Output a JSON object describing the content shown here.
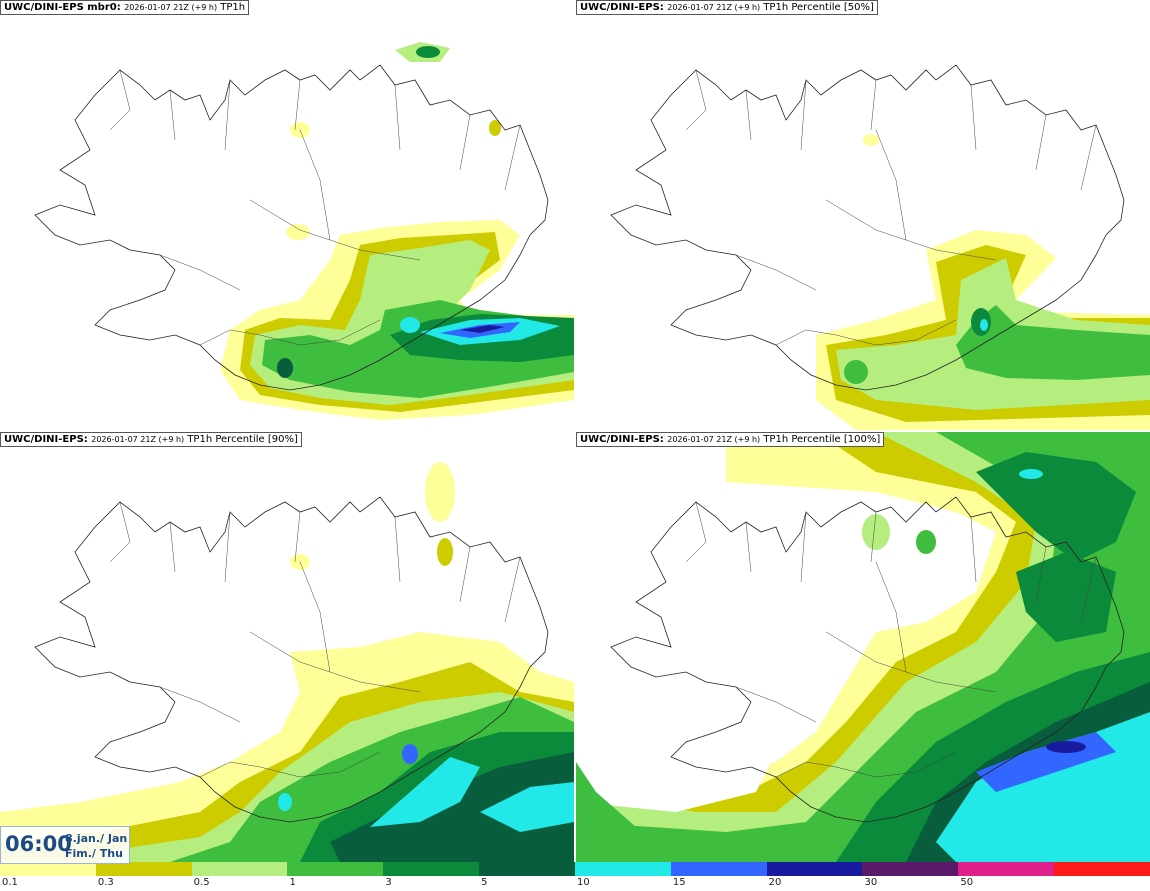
{
  "panels": [
    {
      "model": "UWC/DINI-EPS mbr0",
      "run": "2026-01-07 21Z (+9 h)",
      "field": "TP1h"
    },
    {
      "model": "UWC/DINI-EPS",
      "run": "2026-01-07 21Z (+9 h)",
      "field": "TP1h Percentile [50%]"
    },
    {
      "model": "UWC/DINI-EPS",
      "run": "2026-01-07 21Z (+9 h)",
      "field": "TP1h Percentile [90%]"
    },
    {
      "model": "UWC/DINI-EPS",
      "run": "2026-01-07 21Z (+9 h)",
      "field": "TP1h Percentile [100%]"
    }
  ],
  "valid_time": {
    "time": "06:00",
    "date_line1": "8.jan./ Jan",
    "date_line2": "Fim./ Thu"
  },
  "legend": {
    "colors": [
      "#ffff99",
      "#cccc00",
      "#b5ee7e",
      "#3ebd3e",
      "#0a8a3a",
      "#075d3c",
      "#22e8e8",
      "#3366ff",
      "#1a1aa0",
      "#5a1a6a",
      "#e0208a",
      "#ff1a1a"
    ],
    "labels": [
      "0.1",
      "0.3",
      "0.5",
      "1",
      "3",
      "5",
      "10",
      "15",
      "20",
      "30",
      "50"
    ]
  }
}
